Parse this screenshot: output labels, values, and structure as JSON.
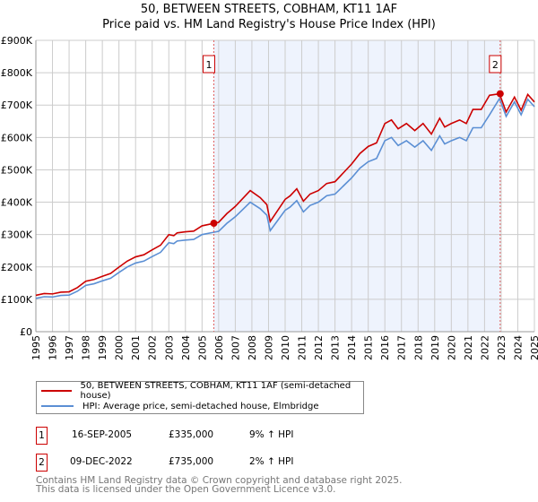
{
  "chart_data": {
    "type": "line",
    "title": "50, BETWEEN STREETS, COBHAM, KT11 1AF",
    "subtitle": "Price paid vs. HM Land Registry's House Price Index (HPI)",
    "xlim": [
      1995,
      2025
    ],
    "ylim": [
      0,
      900000
    ],
    "x_ticks": [
      "1995",
      "1996",
      "1997",
      "1998",
      "1999",
      "2000",
      "2001",
      "2002",
      "2003",
      "2004",
      "2005",
      "2006",
      "2007",
      "2008",
      "2009",
      "2010",
      "2011",
      "2012",
      "2013",
      "2014",
      "2015",
      "2016",
      "2017",
      "2018",
      "2019",
      "2020",
      "2021",
      "2022",
      "2023",
      "2024",
      "2025"
    ],
    "y_ticks": [
      {
        "v": 0,
        "l": "£0"
      },
      {
        "v": 100000,
        "l": "£100K"
      },
      {
        "v": 200000,
        "l": "£200K"
      },
      {
        "v": 300000,
        "l": "£300K"
      },
      {
        "v": 400000,
        "l": "£400K"
      },
      {
        "v": 500000,
        "l": "£500K"
      },
      {
        "v": 600000,
        "l": "£600K"
      },
      {
        "v": 700000,
        "l": "£700K"
      },
      {
        "v": 800000,
        "l": "£800K"
      },
      {
        "v": 900000,
        "l": "£900K"
      }
    ],
    "grid": true,
    "series": [
      {
        "name": "50, BETWEEN STREETS, COBHAM, KT11 1AF (semi-detached house)",
        "color": "#cc0000"
      },
      {
        "name": "HPI: Average price, semi-detached house, Elmbridge",
        "color": "#5b8fd4",
        "x": [
          1995,
          1995.5,
          1996,
          1996.5,
          1997,
          1997.5,
          1998,
          1998.5,
          1999,
          1999.5,
          2000,
          2000.5,
          2001,
          2001.5,
          2002,
          2002.5,
          2003,
          2003.3,
          2003.5,
          2004,
          2004.5,
          2005,
          2005.7,
          2006,
          2006.5,
          2007,
          2007.5,
          2007.9,
          2008.5,
          2008.9,
          2009.1,
          2009.5,
          2010,
          2010.3,
          2010.7,
          2011.1,
          2011.5,
          2012,
          2012.5,
          2013,
          2013.5,
          2014,
          2014.5,
          2015,
          2015.5,
          2016,
          2016.4,
          2016.8,
          2017.3,
          2017.8,
          2018.3,
          2018.8,
          2019.3,
          2019.6,
          2020,
          2020.5,
          2020.9,
          2021.3,
          2021.8,
          2022.3,
          2022.9,
          2023.3,
          2023.8,
          2024.2,
          2024.6,
          2025
        ],
        "y": [
          103000,
          108000,
          107000,
          112000,
          113000,
          125000,
          143000,
          148000,
          157000,
          165000,
          183000,
          200000,
          212000,
          218000,
          232000,
          245000,
          275000,
          272000,
          280000,
          283000,
          285000,
          300000,
          307000,
          310000,
          335000,
          355000,
          380000,
          400000,
          380000,
          360000,
          312000,
          340000,
          375000,
          385000,
          405000,
          370000,
          390000,
          400000,
          420000,
          425000,
          450000,
          475000,
          505000,
          525000,
          535000,
          590000,
          600000,
          575000,
          590000,
          570000,
          590000,
          560000,
          605000,
          580000,
          590000,
          600000,
          590000,
          630000,
          630000,
          670000,
          720000,
          665000,
          710000,
          670000,
          718000,
          695000
        ]
      }
    ],
    "sales": [
      {
        "label": "1",
        "date": "16-SEP-2005",
        "x": 2005.71,
        "price": "£335,000",
        "value": 335000,
        "hpi": "9% ↑ HPI"
      },
      {
        "label": "2",
        "date": "09-DEC-2022",
        "x": 2022.94,
        "price": "£735,000",
        "value": 735000,
        "hpi": "2% ↑ HPI"
      }
    ]
  },
  "footer": {
    "line1": "Contains HM Land Registry data © Crown copyright and database right 2025.",
    "line2": "This data is licensed under the Open Government Licence v3.0."
  }
}
